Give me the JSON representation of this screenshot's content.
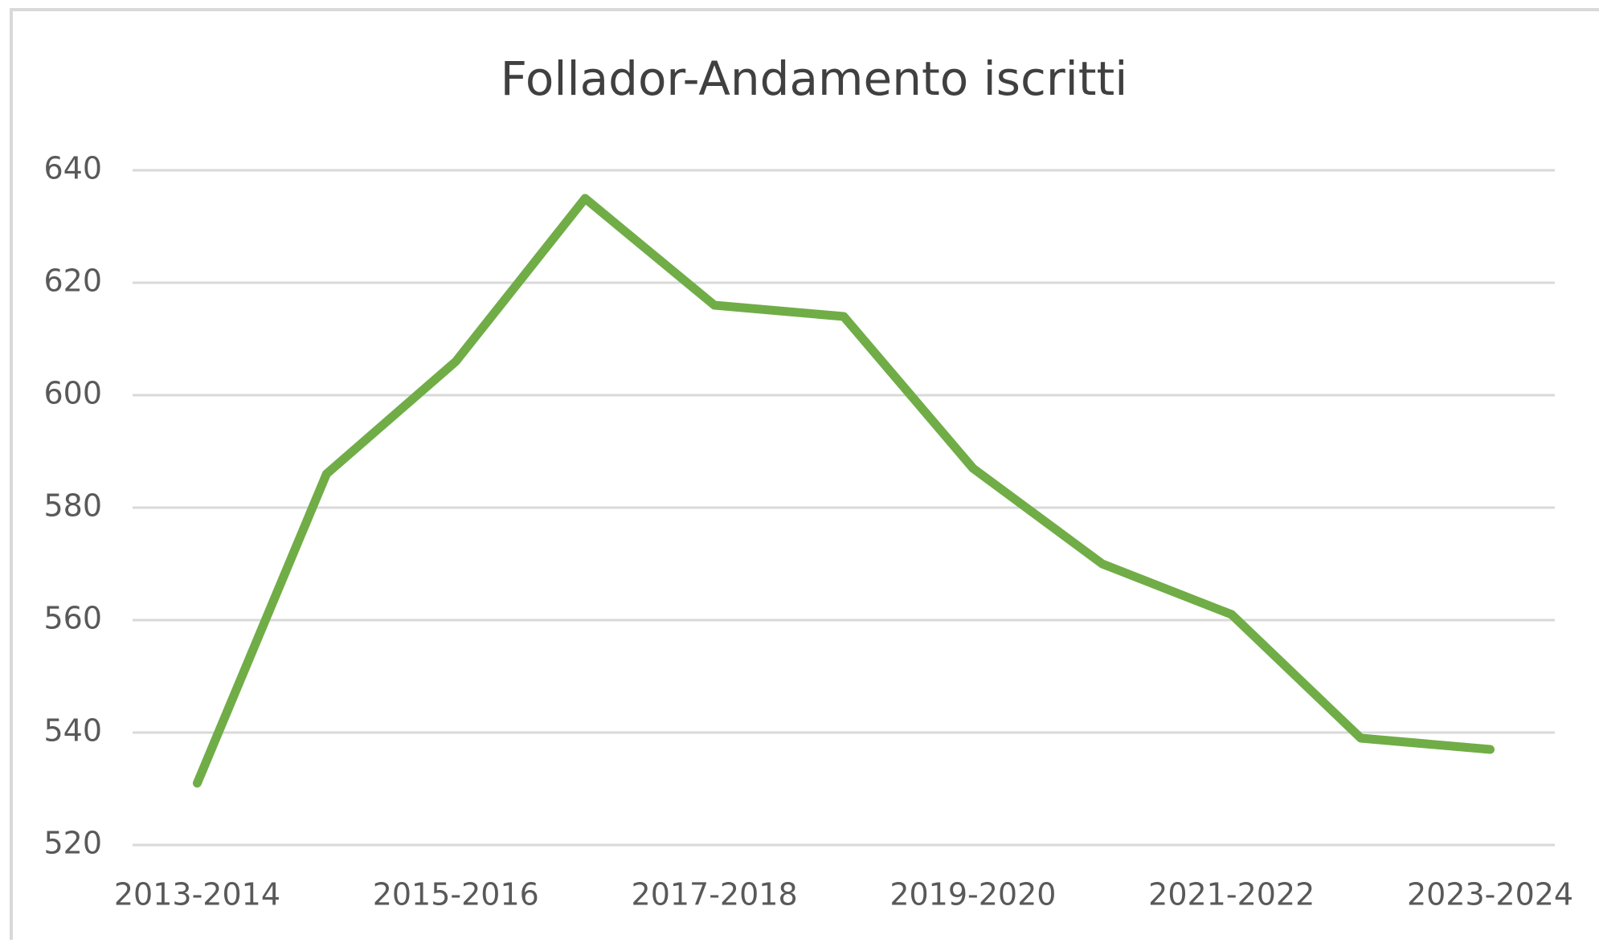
{
  "chart_data": {
    "type": "line",
    "title": "Follador-Andamento iscritti",
    "categories": [
      "2013-2014",
      null,
      "2015-2016",
      null,
      "2017-2018",
      null,
      "2019-2020",
      null,
      "2021-2022",
      null,
      "2023-2024"
    ],
    "series": [
      {
        "color": "#70ad47",
        "values": [
          531,
          586,
          606,
          635,
          616,
          614,
          587,
          570,
          561,
          539,
          537
        ]
      }
    ],
    "ylim": [
      520,
      640
    ],
    "yticks": [
      520,
      540,
      560,
      580,
      600,
      620,
      640
    ],
    "grid": true
  }
}
